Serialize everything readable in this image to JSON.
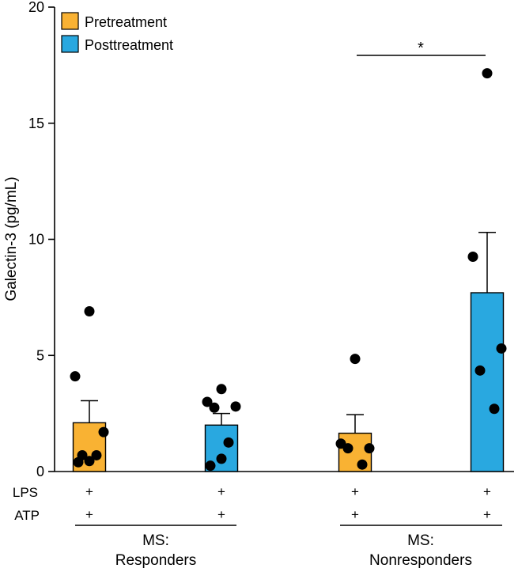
{
  "chart_data": {
    "type": "bar",
    "ylabel": "Galectin-3 (pg/mL)",
    "ylim": [
      0,
      20
    ],
    "yticks": [
      0,
      5,
      10,
      15,
      20
    ],
    "colors": {
      "pretreatment": "#f9b233",
      "posttreatment": "#29a8e0",
      "dots": "#000000",
      "stroke": "#000000"
    },
    "legend": {
      "position": "top-left",
      "items": [
        {
          "label": "Pretreatment",
          "color": "#f9b233"
        },
        {
          "label": "Posttreatment",
          "color": "#29a8e0"
        }
      ]
    },
    "bars": [
      {
        "group": "Responders",
        "condition": "Pretreatment",
        "color": "#f9b233",
        "mean": 2.1,
        "sem": 0.95,
        "points": [
          6.9,
          4.1,
          1.7,
          0.7,
          0.7,
          0.45,
          0.4
        ]
      },
      {
        "group": "Responders",
        "condition": "Posttreatment",
        "color": "#29a8e0",
        "mean": 2.0,
        "sem": 0.5,
        "points": [
          3.55,
          3.0,
          2.8,
          2.75,
          1.25,
          0.55,
          0.25
        ]
      },
      {
        "group": "Nonresponders",
        "condition": "Pretreatment",
        "color": "#f9b233",
        "mean": 1.65,
        "sem": 0.8,
        "points": [
          4.85,
          1.2,
          1.0,
          1.0,
          0.3
        ]
      },
      {
        "group": "Nonresponders",
        "condition": "Posttreatment",
        "color": "#29a8e0",
        "mean": 7.7,
        "sem": 2.6,
        "points": [
          17.15,
          9.25,
          5.3,
          4.35,
          2.7
        ]
      }
    ],
    "significance": {
      "label": "*",
      "from_bar": 2,
      "to_bar": 3,
      "level": 17.9
    },
    "conditions": [
      {
        "name": "LPS",
        "marks": [
          "+",
          "+",
          "+",
          "+"
        ]
      },
      {
        "name": "ATP",
        "marks": [
          "+",
          "+",
          "+",
          "+"
        ]
      }
    ],
    "groups": [
      {
        "line1": "MS:",
        "line2": "Responders"
      },
      {
        "line1": "MS:",
        "line2": "Nonresponders"
      }
    ]
  }
}
